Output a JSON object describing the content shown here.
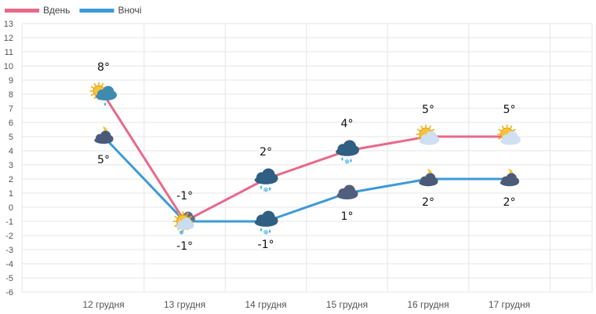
{
  "chart_data": {
    "type": "line",
    "categories": [
      "12 грудня",
      "13 грудня",
      "14 грудня",
      "15 грудня",
      "16 грудня",
      "17 грудня"
    ],
    "series": [
      {
        "name": "Вдень",
        "color": "#e8698a",
        "values": [
          8,
          -1,
          2,
          4,
          5,
          5
        ],
        "labels": [
          "8°",
          "-1°",
          "2°",
          "4°",
          "5°",
          "5°"
        ],
        "icons": [
          "partly-cloudy-rain-icon",
          "snow-cloud-sun-icon",
          "cloud-snow-rain-icon",
          "cloud-snow-rain-icon",
          "sun-cloud-icon",
          "sun-cloud-icon"
        ]
      },
      {
        "name": "Вночі",
        "color": "#3d9ad6",
        "values": [
          5,
          -1,
          -1,
          1,
          2,
          2
        ],
        "labels": [
          "5°",
          "-1°",
          "-1°",
          "1°",
          "2°",
          "2°"
        ],
        "icons": [
          "moon-cloud-icon",
          "snow-cloud-sun-icon",
          "cloud-snow-rain-icon",
          "cloud-icon",
          "moon-cloud-icon",
          "moon-cloud-icon"
        ]
      }
    ],
    "ylim": [
      -6,
      13
    ],
    "yticks": [
      "13",
      "12",
      "11",
      "10",
      "9",
      "8",
      "7",
      "6",
      "5",
      "4",
      "3",
      "2",
      "1",
      "0",
      "-1",
      "-2",
      "-3",
      "-4",
      "-5",
      "-6"
    ],
    "grid": true,
    "legend": "top-left"
  }
}
